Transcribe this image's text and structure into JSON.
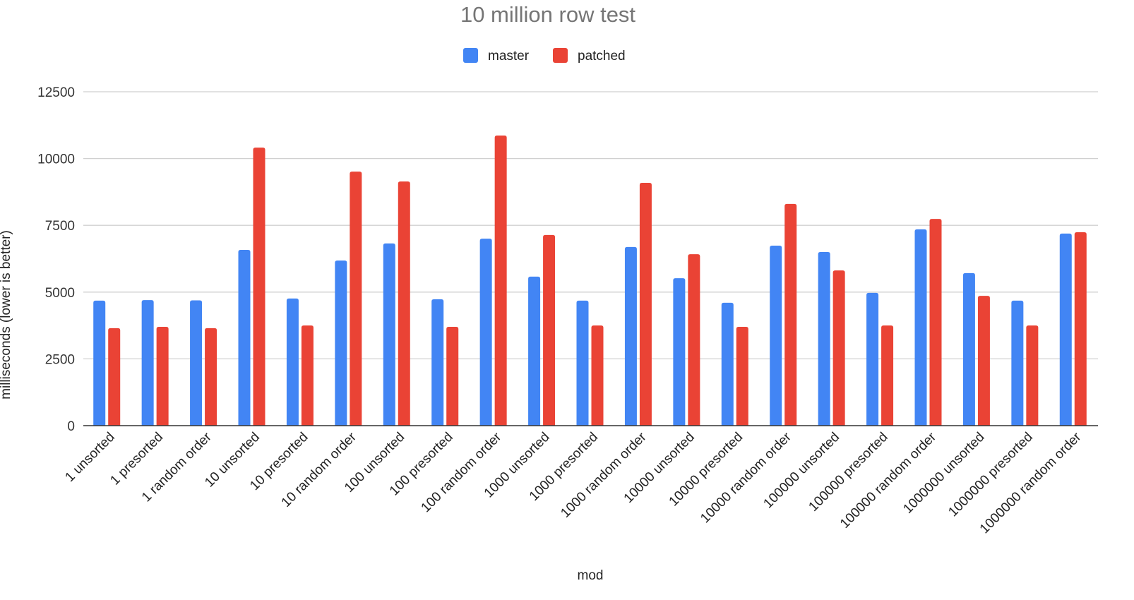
{
  "chart_data": {
    "type": "bar",
    "title": "10 million row test",
    "xlabel": "mod",
    "ylabel": "milliseconds (lower is better)",
    "ylim": [
      0,
      12500
    ],
    "yticks": [
      0,
      2500,
      5000,
      7500,
      10000,
      12500
    ],
    "grid": true,
    "legend_position": "top",
    "categories": [
      "1 unsorted",
      "1 presorted",
      "1 random order",
      "10 unsorted",
      "10 presorted",
      "10 random order",
      "100 unsorted",
      "100 presorted",
      "100 random order",
      "1000 unsorted",
      "1000 presorted",
      "1000 random order",
      "10000 unsorted",
      "10000 presorted",
      "10000 random order",
      "100000 unsorted",
      "100000 presorted",
      "100000 random order",
      "1000000 unsorted",
      "1000000 presorted",
      "1000000 random order"
    ],
    "series": [
      {
        "name": "master",
        "color": "#4285f4",
        "values": [
          4680,
          4700,
          4690,
          6580,
          4760,
          6180,
          6820,
          4730,
          7000,
          5580,
          4680,
          6690,
          5520,
          4600,
          6740,
          6500,
          4970,
          7350,
          5710,
          4680,
          7190
        ]
      },
      {
        "name": "patched",
        "color": "#ea4335",
        "values": [
          3650,
          3700,
          3650,
          10410,
          3750,
          9510,
          9140,
          3700,
          10860,
          7140,
          3750,
          9090,
          6420,
          3700,
          8300,
          5810,
          3750,
          7740,
          4860,
          3750,
          7240
        ]
      }
    ]
  }
}
